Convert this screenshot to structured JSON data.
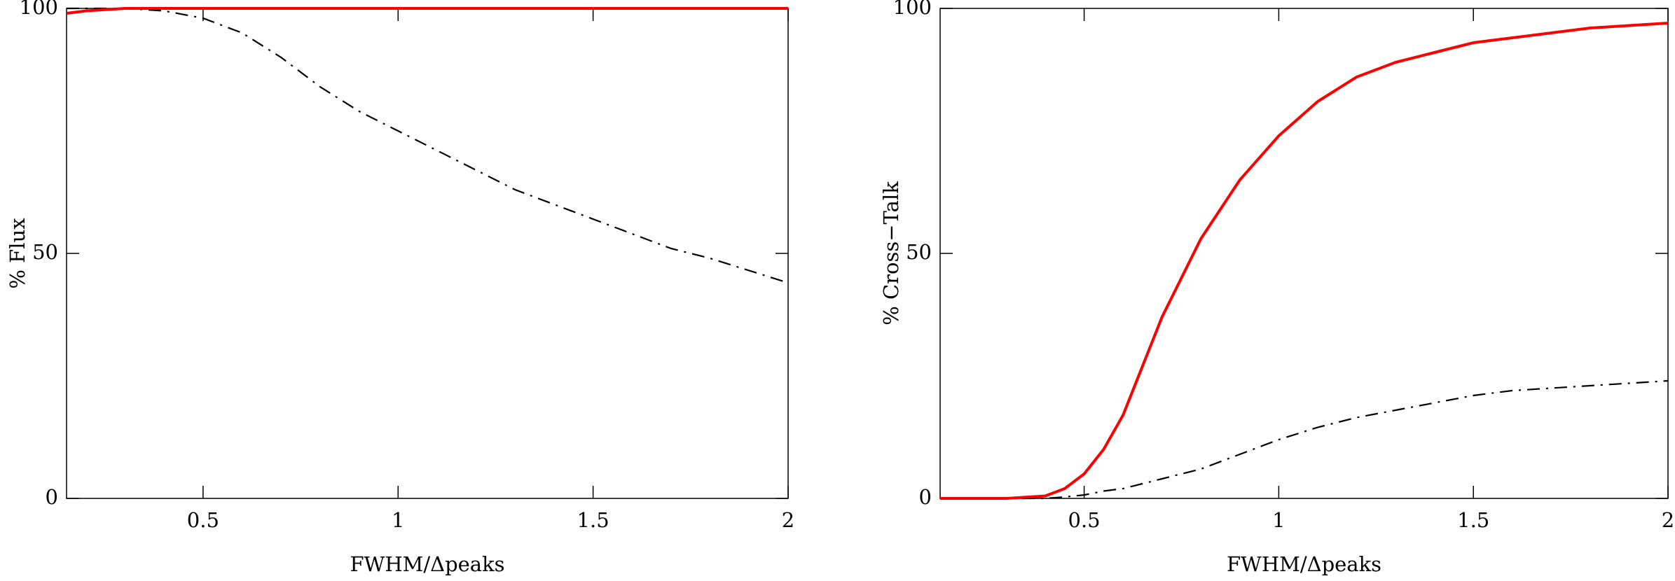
{
  "chart_data": [
    {
      "type": "line",
      "xlabel": "FWHM/Δpeaks",
      "ylabel": "% Flux",
      "x": [
        0.15,
        0.2,
        0.3,
        0.4,
        0.5,
        0.6,
        0.7,
        0.8,
        0.9,
        1.0,
        1.1,
        1.2,
        1.3,
        1.4,
        1.5,
        1.6,
        1.7,
        1.8,
        1.9,
        2.0
      ],
      "series": [
        {
          "color": "#000000",
          "dash": "dash-dot",
          "values": [
            100,
            100,
            100,
            99.5,
            98,
            95,
            90,
            84,
            79,
            75,
            71,
            67,
            63,
            60,
            57,
            54,
            51,
            49,
            46.5,
            44
          ]
        },
        {
          "color": "#ff0000",
          "dash": "solid",
          "values": [
            99,
            99.5,
            100,
            100,
            100,
            100,
            100,
            100,
            100,
            100,
            100,
            100,
            100,
            100,
            100,
            100,
            100,
            100,
            100,
            100
          ]
        }
      ],
      "xlim": [
        0.15,
        2
      ],
      "ylim": [
        0,
        100
      ],
      "xticks": [
        0.5,
        1,
        1.5,
        2
      ],
      "yticks": [
        0,
        50,
        100
      ]
    },
    {
      "type": "line",
      "xlabel": "FWHM/Δpeaks",
      "ylabel": "% Cross−Talk",
      "x": [
        0.13,
        0.2,
        0.3,
        0.4,
        0.45,
        0.5,
        0.55,
        0.6,
        0.65,
        0.7,
        0.75,
        0.8,
        0.9,
        1.0,
        1.1,
        1.2,
        1.3,
        1.4,
        1.5,
        1.6,
        1.7,
        1.8,
        1.9,
        2.0
      ],
      "series": [
        {
          "color": "#000000",
          "dash": "dash-dot",
          "values": [
            0,
            0,
            0,
            0,
            0.3,
            0.7,
            1.5,
            2,
            3,
            4,
            5,
            6,
            9,
            12,
            14.5,
            16.5,
            18,
            19.5,
            21,
            22,
            22.5,
            23,
            23.5,
            24
          ]
        },
        {
          "color": "#ff0000",
          "dash": "solid",
          "values": [
            0,
            0,
            0,
            0.5,
            2,
            5,
            10,
            17,
            27,
            37,
            45,
            53,
            65,
            74,
            81,
            86,
            89,
            91,
            93,
            94,
            95,
            96,
            96.5,
            97
          ]
        }
      ],
      "xlim": [
        0.13,
        2
      ],
      "ylim": [
        0,
        100
      ],
      "xticks": [
        0.5,
        1,
        1.5,
        2
      ],
      "yticks": [
        0,
        50,
        100
      ]
    }
  ]
}
